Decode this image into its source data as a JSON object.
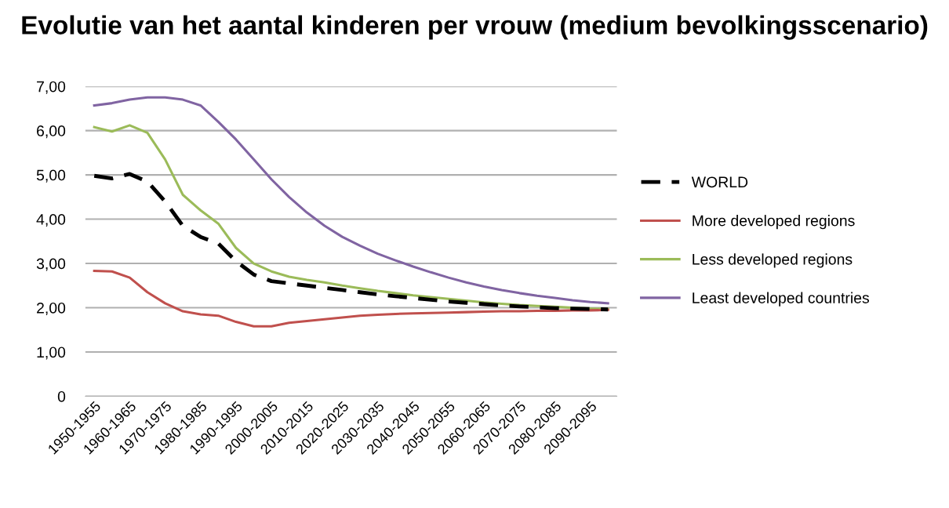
{
  "chart_data": {
    "type": "line",
    "title": "Evolutie van het aantal kinderen per vrouw (medium bevolkingsscenario)",
    "categories": [
      "1950-1955",
      null,
      "1960-1965",
      null,
      "1970-1975",
      null,
      "1980-1985",
      null,
      "1990-1995",
      null,
      "2000-2005",
      null,
      "2010-2015",
      null,
      "2020-2025",
      null,
      "2030-2035",
      null,
      "2040-2045",
      null,
      "2050-2055",
      null,
      "2060-2065",
      null,
      "2070-2075",
      null,
      "2080-2085",
      null,
      "2090-2095",
      null
    ],
    "series": [
      {
        "name": "WORLD",
        "color": "#000000",
        "line_style": "dashed",
        "values": [
          4.98,
          4.92,
          5.02,
          4.85,
          4.4,
          3.85,
          3.6,
          3.45,
          3.05,
          2.75,
          2.6,
          2.55,
          2.5,
          2.45,
          2.4,
          2.35,
          2.3,
          2.26,
          2.22,
          2.18,
          2.14,
          2.11,
          2.08,
          2.05,
          2.03,
          2.01,
          1.99,
          1.98,
          1.97,
          1.96
        ]
      },
      {
        "name": "More developed regions",
        "color": "#c0504d",
        "values": [
          2.83,
          2.82,
          2.68,
          2.35,
          2.1,
          1.92,
          1.85,
          1.82,
          1.68,
          1.58,
          1.58,
          1.66,
          1.7,
          1.74,
          1.78,
          1.82,
          1.84,
          1.86,
          1.87,
          1.88,
          1.89,
          1.9,
          1.91,
          1.92,
          1.92,
          1.93,
          1.93,
          1.94,
          1.94,
          1.95
        ]
      },
      {
        "name": "Less developed regions",
        "color": "#9bbb59",
        "values": [
          6.08,
          5.98,
          6.12,
          5.95,
          5.35,
          4.55,
          4.2,
          3.9,
          3.35,
          3.0,
          2.82,
          2.7,
          2.63,
          2.57,
          2.5,
          2.44,
          2.38,
          2.33,
          2.28,
          2.24,
          2.2,
          2.16,
          2.12,
          2.09,
          2.06,
          2.04,
          2.02,
          2.0,
          1.98,
          1.97
        ]
      },
      {
        "name": "Least developed countries",
        "color": "#8064a2",
        "values": [
          6.57,
          6.62,
          6.7,
          6.75,
          6.75,
          6.7,
          6.57,
          6.2,
          5.8,
          5.35,
          4.9,
          4.5,
          4.15,
          3.85,
          3.6,
          3.4,
          3.22,
          3.07,
          2.93,
          2.8,
          2.68,
          2.57,
          2.48,
          2.4,
          2.33,
          2.27,
          2.22,
          2.17,
          2.13,
          2.1
        ]
      }
    ],
    "ylim": [
      0,
      7
    ],
    "yticks": [
      0,
      {
        "value": 1,
        "label": "1,00"
      },
      {
        "value": 2,
        "label": "2,00"
      },
      {
        "value": 3,
        "label": "3,00"
      },
      {
        "value": 4,
        "label": "4,00"
      },
      {
        "value": 5,
        "label": "5,00"
      },
      {
        "value": 6,
        "label": "6,00"
      },
      {
        "value": 7,
        "label": "7,00"
      }
    ],
    "grid": "y",
    "legend": "right",
    "line_style": "solid"
  }
}
